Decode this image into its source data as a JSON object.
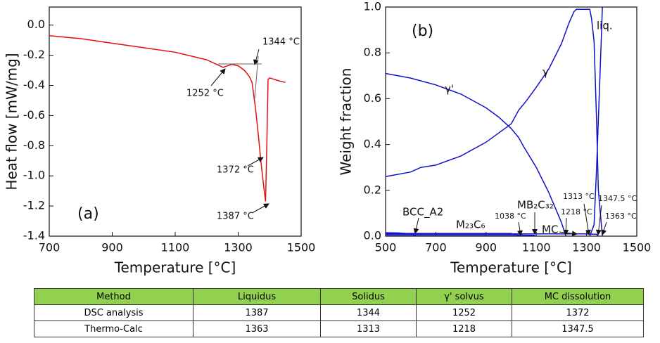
{
  "chart_data": [
    {
      "type": "line",
      "panel_label": "(a)",
      "xlabel": "Temperature [°C]",
      "ylabel": "Heat flow [mW/mg]",
      "xlim": [
        700,
        1500
      ],
      "xticks": [
        700,
        900,
        1100,
        1300,
        1500
      ],
      "ylim": [
        -1.4,
        0.12
      ],
      "yticks": [
        {
          "value": 0,
          "label": "0.0"
        },
        -0.2,
        -0.4,
        -0.6,
        -0.8,
        {
          "value": -1,
          "label": "-1.0"
        },
        -1.2,
        -1.4
      ],
      "series": [
        {
          "color": "#e01010",
          "x": [
            700,
            800,
            900,
            1000,
            1100,
            1200,
            1252,
            1280,
            1300,
            1320,
            1335,
            1344,
            1355,
            1365,
            1372,
            1380,
            1387,
            1391,
            1395,
            1400,
            1430,
            1450
          ],
          "values": [
            -0.07,
            -0.09,
            -0.12,
            -0.15,
            -0.18,
            -0.23,
            -0.28,
            -0.26,
            -0.27,
            -0.3,
            -0.34,
            -0.38,
            -0.55,
            -0.75,
            -0.9,
            -1.05,
            -1.17,
            -0.8,
            -0.36,
            -0.35,
            -0.37,
            -0.38
          ]
        }
      ],
      "annotations": [
        "1344 °C",
        "1252 °C",
        "1372 °C",
        "1387 °C"
      ]
    },
    {
      "type": "line",
      "panel_label": "(b)",
      "xlabel": "Temperature [°C]",
      "ylabel": "Weight fraction",
      "xlim": [
        500,
        1500
      ],
      "xticks": [
        500,
        700,
        900,
        1100,
        1300,
        1500
      ],
      "ylim": [
        0,
        1
      ],
      "yticks": [
        {
          "value": 0,
          "label": "0.0"
        },
        0.2,
        0.4,
        0.6,
        0.8,
        {
          "value": 1,
          "label": "1.0"
        }
      ],
      "series": [
        {
          "name": "γ'",
          "color": "#1010c8",
          "x": [
            500,
            600,
            700,
            800,
            900,
            950,
            1000,
            1030,
            1050,
            1100,
            1150,
            1200,
            1218
          ],
          "values": [
            0.71,
            0.69,
            0.66,
            0.62,
            0.56,
            0.52,
            0.47,
            0.43,
            0.39,
            0.3,
            0.19,
            0.06,
            0
          ]
        },
        {
          "name": "γ",
          "color": "#1010c8",
          "x": [
            500,
            600,
            640,
            700,
            800,
            900,
            1000,
            1030,
            1060,
            1100,
            1150,
            1200,
            1230,
            1250,
            1260,
            1300,
            1313,
            1320,
            1330,
            1340,
            1347,
            1363
          ],
          "values": [
            0.26,
            0.28,
            0.3,
            0.31,
            0.35,
            0.41,
            0.49,
            0.55,
            0.59,
            0.65,
            0.73,
            0.84,
            0.93,
            0.98,
            0.99,
            0.99,
            0.99,
            0.95,
            0.85,
            0.5,
            0.2,
            0
          ]
        },
        {
          "name": "liq.",
          "color": "#1010c8",
          "x": [
            1313,
            1330,
            1340,
            1350,
            1360,
            1363
          ],
          "values": [
            0,
            0.05,
            0.3,
            0.6,
            0.9,
            1
          ]
        },
        {
          "name": "BCC_A2",
          "color": "#1010c8",
          "x": [
            500,
            550,
            600,
            620
          ],
          "values": [
            0.015,
            0.014,
            0.01,
            0
          ]
        },
        {
          "name": "M₂₃C₆",
          "color": "#1010c8",
          "x": [
            500,
            800,
            1000,
            1038
          ],
          "values": [
            0.012,
            0.012,
            0.012,
            0
          ]
        },
        {
          "name": "MB₂C₃₂",
          "color": "#1010c8",
          "x": [
            500,
            1000,
            1090,
            1100
          ],
          "values": [
            0.005,
            0.005,
            0.004,
            0
          ]
        },
        {
          "name": "MC",
          "color": "#1010c8",
          "x": [
            500,
            1000,
            1300,
            1340,
            1347.5
          ],
          "values": [
            0.01,
            0.01,
            0.01,
            0.008,
            0
          ]
        }
      ],
      "annotations": [
        "1038 °C",
        "1218 °C",
        "1313 °C",
        "1347.5 °C",
        "1363 °C"
      ]
    }
  ],
  "table": {
    "header": [
      "Method",
      "Liquidus",
      "Solidus",
      "γ' solvus",
      "MC dissolution"
    ],
    "rows": [
      [
        "DSC analysis",
        1387,
        1344,
        1252,
        1372
      ],
      [
        "Thermo-Calc",
        1363,
        1313,
        1218,
        1347.5
      ]
    ]
  }
}
